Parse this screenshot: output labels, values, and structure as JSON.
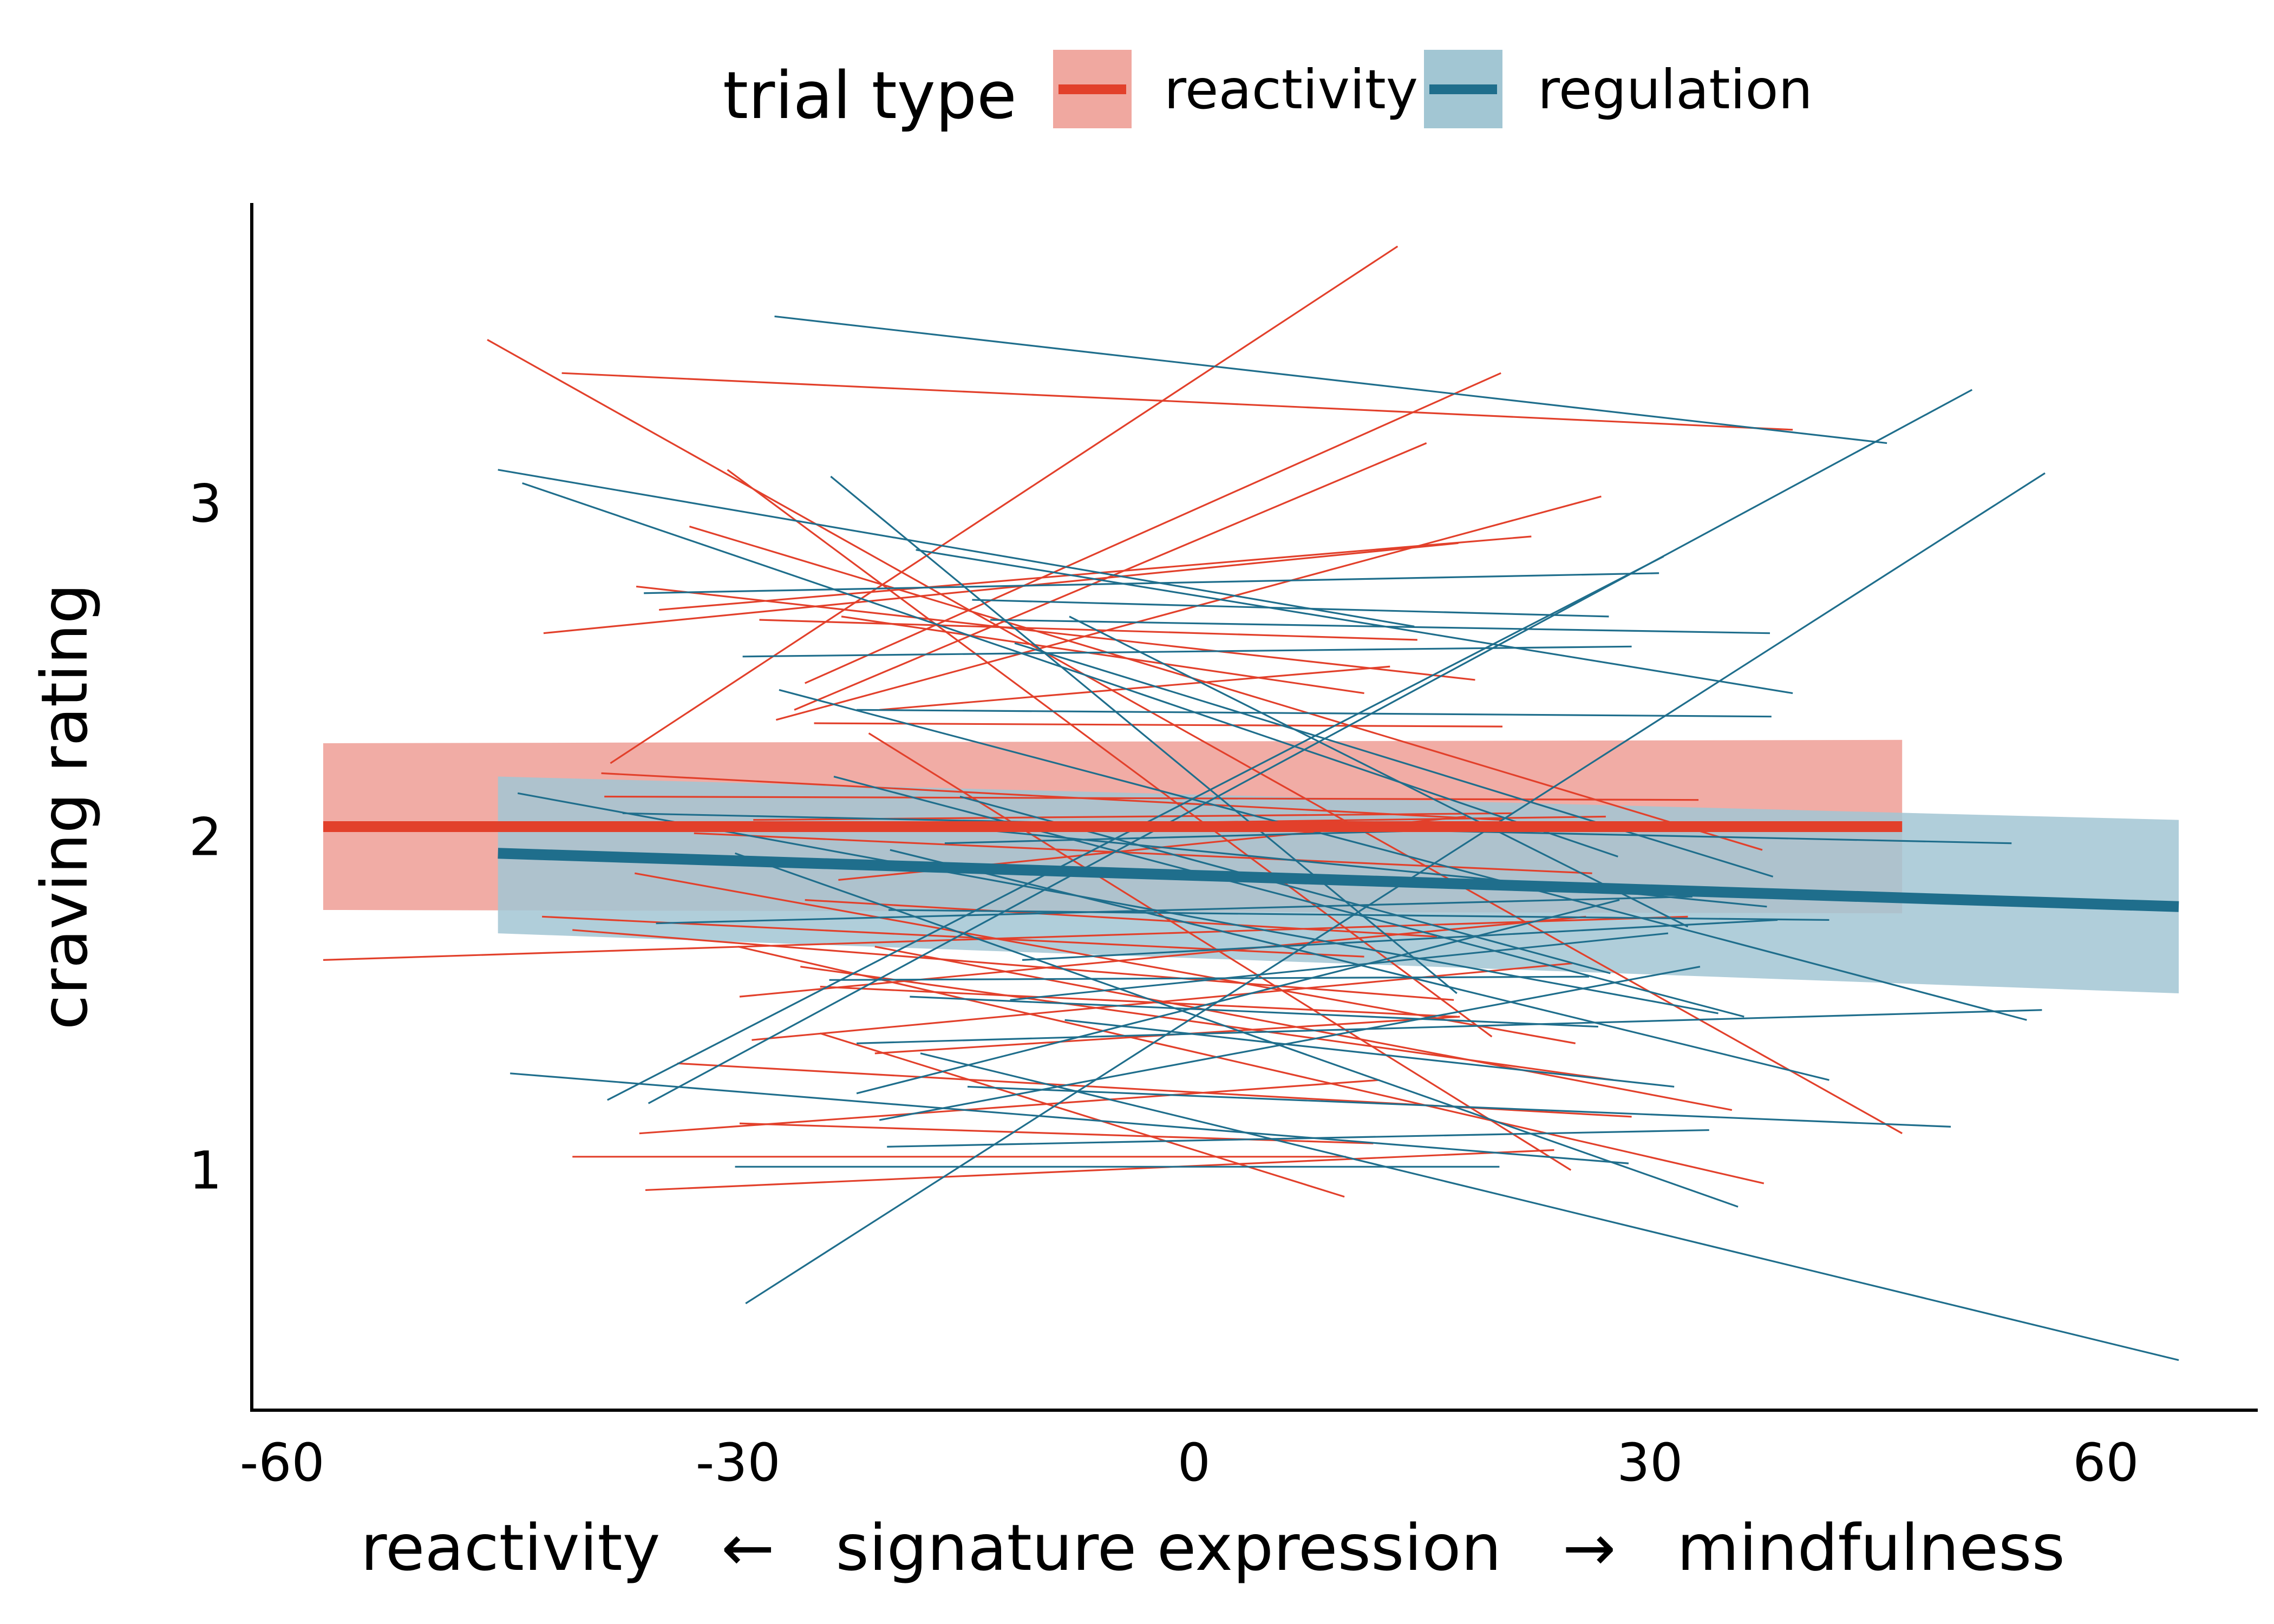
{
  "legend": {
    "title": "trial type",
    "items": [
      {
        "label": "reactivity",
        "line_color": "#e2402b",
        "band_color": "#f0a8a0"
      },
      {
        "label": "regulation",
        "line_color": "#1f6e8c",
        "band_color": "#a2c6d3"
      }
    ]
  },
  "chart_data": {
    "type": "line",
    "xlabel": "reactivity   ←   signature expression   →   mindfulness",
    "ylabel": "craving rating",
    "xlim": [
      -62,
      70
    ],
    "ylim": [
      0.28,
      3.9
    ],
    "x_ticks": [
      -60,
      -30,
      0,
      30,
      60
    ],
    "x_tick_labels": [
      "-60",
      "-30",
      "0",
      "30",
      "60"
    ],
    "y_ticks": [
      1,
      2,
      3
    ],
    "y_tick_labels": [
      "1",
      "2",
      "3"
    ],
    "grid": false,
    "legend_position": "top",
    "fitted_lines": [
      {
        "name": "reactivity",
        "color": "#e2402b",
        "band_color": "#f0a8a0",
        "x": [
          -57.3,
          46.6
        ],
        "y": [
          2.03,
          2.03
        ],
        "band_lower": [
          1.78,
          1.77
        ],
        "band_upper": [
          2.28,
          2.29
        ]
      },
      {
        "name": "regulation",
        "color": "#1f6e8c",
        "band_color": "#a2c6d3",
        "x": [
          -45.8,
          64.8
        ],
        "y": [
          1.95,
          1.79
        ],
        "band_lower": [
          1.71,
          1.53
        ],
        "band_upper": [
          2.18,
          2.05
        ]
      }
    ],
    "subject_lines": {
      "reactivity": [
        [
          -57.3,
          1.63,
          32.5,
          1.76
        ],
        [
          -46.5,
          3.49,
          46.6,
          1.11
        ],
        [
          -41.6,
          3.39,
          39.4,
          3.22
        ],
        [
          -42.8,
          2.61,
          17.4,
          2.88
        ],
        [
          -38.4,
          2.22,
          13.4,
          3.77
        ],
        [
          -30.7,
          3.1,
          19.6,
          1.4
        ],
        [
          -33.2,
          2.93,
          37.4,
          1.96
        ],
        [
          -27.5,
          2.35,
          26.8,
          3.02
        ],
        [
          -25.0,
          2.34,
          20.3,
          2.33
        ],
        [
          -21.4,
          2.31,
          24.8,
          1.0
        ],
        [
          -36.7,
          2.75,
          18.5,
          2.47
        ],
        [
          -35.2,
          2.68,
          22.2,
          2.9
        ],
        [
          -28.6,
          2.65,
          14.7,
          2.59
        ],
        [
          -26.3,
          2.38,
          15.3,
          3.18
        ],
        [
          -25.6,
          2.46,
          20.2,
          3.39
        ],
        [
          -23.2,
          2.66,
          11.2,
          2.43
        ],
        [
          -20.7,
          2.38,
          12.9,
          2.51
        ],
        [
          -38.8,
          2.12,
          33.2,
          2.11
        ],
        [
          -35.3,
          2.02,
          27.1,
          2.06
        ],
        [
          -29.9,
          1.52,
          25.8,
          1.76
        ],
        [
          -32.9,
          2.01,
          26.2,
          1.89
        ],
        [
          -23.4,
          1.87,
          17.9,
          2.06
        ],
        [
          -36.8,
          1.89,
          25.1,
          1.38
        ],
        [
          -25.6,
          1.81,
          16.0,
          1.7
        ],
        [
          -42.9,
          1.76,
          11.2,
          1.64
        ],
        [
          -40.9,
          1.72,
          17.1,
          1.51
        ],
        [
          -21.0,
          1.67,
          35.4,
          1.18
        ],
        [
          -30.0,
          1.67,
          37.5,
          0.96
        ],
        [
          -25.9,
          1.61,
          27.6,
          1.27
        ],
        [
          -24.6,
          1.55,
          17.3,
          1.46
        ],
        [
          -34.0,
          1.32,
          28.8,
          1.16
        ],
        [
          -29.9,
          1.14,
          11.8,
          1.08
        ],
        [
          -36.5,
          1.11,
          12.2,
          1.27
        ],
        [
          -40.9,
          1.04,
          10.0,
          1.04
        ],
        [
          -36.1,
          0.94,
          23.7,
          1.06
        ],
        [
          -29.1,
          1.39,
          24.9,
          1.62
        ],
        [
          -24.6,
          1.41,
          9.9,
          0.92
        ],
        [
          -21.0,
          1.35,
          17.5,
          1.46
        ],
        [
          -39.0,
          2.19,
          20.3,
          2.05
        ],
        [
          -29.0,
          2.05,
          21.0,
          2.07
        ]
      ],
      "regulation": [
        [
          -45.8,
          3.1,
          14.5,
          2.63
        ],
        [
          -44.2,
          3.06,
          27.9,
          1.94
        ],
        [
          -27.6,
          3.56,
          45.6,
          3.18
        ],
        [
          -23.9,
          3.08,
          17.3,
          1.53
        ],
        [
          -18.3,
          2.86,
          39.4,
          2.43
        ],
        [
          -36.2,
          2.73,
          30.6,
          2.79
        ],
        [
          -13.4,
          2.65,
          37.9,
          2.61
        ],
        [
          -29.7,
          2.54,
          28.8,
          2.57
        ],
        [
          -15.4,
          2.12,
          27.4,
          1.59
        ],
        [
          -44.5,
          2.13,
          34.5,
          1.47
        ],
        [
          -37.6,
          2.07,
          53.8,
          1.98
        ],
        [
          -38.6,
          1.21,
          30.9,
          2.84
        ],
        [
          -35.9,
          1.2,
          51.2,
          3.34
        ],
        [
          -29.5,
          0.6,
          56.0,
          3.09
        ],
        [
          -45.0,
          1.29,
          28.6,
          1.02
        ],
        [
          -35.4,
          1.74,
          32.8,
          1.82
        ],
        [
          -30.2,
          1.01,
          20.1,
          1.01
        ],
        [
          -18.7,
          1.52,
          26.6,
          1.43
        ],
        [
          -18.0,
          1.35,
          64.8,
          0.43
        ],
        [
          -20.2,
          1.07,
          33.9,
          1.12
        ],
        [
          -11.8,
          2.58,
          38.1,
          1.88
        ],
        [
          -23.7,
          2.18,
          36.2,
          1.46
        ],
        [
          -12.1,
          1.51,
          31.2,
          1.71
        ],
        [
          -11.3,
          1.63,
          38.4,
          1.75
        ],
        [
          -22.2,
          1.38,
          55.8,
          1.48
        ],
        [
          -8.5,
          1.45,
          31.6,
          1.25
        ],
        [
          -14.9,
          1.25,
          49.8,
          1.13
        ],
        [
          -20.7,
          1.15,
          33.3,
          1.61
        ],
        [
          -18.3,
          2.04,
          37.7,
          1.79
        ],
        [
          -27.3,
          2.44,
          54.8,
          1.45
        ],
        [
          -24.0,
          1.57,
          26.0,
          1.58
        ],
        [
          -20.1,
          1.78,
          41.8,
          1.75
        ],
        [
          -22.2,
          2.38,
          38.0,
          2.36
        ],
        [
          -16.4,
          1.98,
          33.6,
          2.04
        ],
        [
          -30.2,
          1.95,
          35.8,
          0.89
        ],
        [
          -22.2,
          1.23,
          28.0,
          1.81
        ],
        [
          -8.2,
          2.66,
          32.5,
          1.73
        ],
        [
          -14.6,
          2.71,
          27.3,
          2.66
        ],
        [
          -20.0,
          1.96,
          41.8,
          1.27
        ]
      ]
    }
  }
}
